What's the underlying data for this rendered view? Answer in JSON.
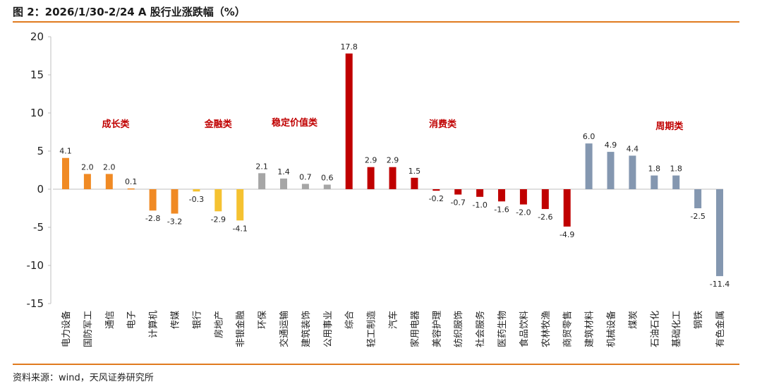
{
  "title": "图 2：2026/1/30-2/24 A 股行业涨跌幅（%）",
  "source": "资料来源：wind，天风证券研究所",
  "colors": {
    "growth": "#f08a24",
    "finance": "#f5c231",
    "stable": "#a6a6a6",
    "consumer": "#c00000",
    "cyclical": "#8497b0",
    "rule": "#e07b1f",
    "group_label": "#c00000"
  },
  "chart_data": {
    "type": "bar",
    "title": "2026/1/30-2/24 A 股行业涨跌幅（%）",
    "xlabel": "",
    "ylabel": "",
    "ylim": [
      -15,
      20
    ],
    "yticks": [
      20,
      15,
      10,
      5,
      0,
      -5,
      -10,
      -15
    ],
    "grid": false,
    "categories": [
      "电力设备",
      "国防军工",
      "通信",
      "电子",
      "计算机",
      "传媒",
      "银行",
      "房地产",
      "非银金融",
      "环保",
      "交通运输",
      "建筑装饰",
      "公用事业",
      "综合",
      "轻工制造",
      "汽车",
      "家用电器",
      "美容护理",
      "纺织服饰",
      "社会服务",
      "医药生物",
      "食品饮料",
      "农林牧渔",
      "商贸零售",
      "建筑材料",
      "机械设备",
      "煤炭",
      "石油石化",
      "基础化工",
      "钢铁",
      "有色金属"
    ],
    "values": [
      4.1,
      2.0,
      2.0,
      0.1,
      -2.8,
      -3.2,
      -0.3,
      -2.9,
      -4.1,
      2.1,
      1.4,
      0.7,
      0.6,
      17.8,
      2.9,
      2.9,
      1.5,
      -0.2,
      -0.7,
      -1.0,
      -1.6,
      -2.0,
      -2.6,
      -4.9,
      6.0,
      4.9,
      4.4,
      1.8,
      1.8,
      -2.5,
      -11.4
    ],
    "value_labels": [
      "4.1",
      "2.0",
      "2.0",
      "0.1",
      "-2.8",
      "-3.2",
      "-0.3",
      "-2.9",
      "-4.1",
      "2.1",
      "1.4",
      "0.7",
      "0.6",
      "17.8",
      "2.9",
      "2.9",
      "1.5",
      "-0.2",
      "-0.7",
      "-1.0",
      "-1.6",
      "-2.0",
      "-2.6",
      "-4.9",
      "6.0",
      "4.9",
      "4.4",
      "1.8",
      "1.8",
      "-2.5",
      "-11.4"
    ],
    "groups": [
      {
        "name": "成长类",
        "start": 0,
        "end": 5,
        "color_key": "growth"
      },
      {
        "name": "金融类",
        "start": 6,
        "end": 8,
        "color_key": "finance"
      },
      {
        "name": "稳定价值类",
        "start": 9,
        "end": 12,
        "color_key": "stable"
      },
      {
        "name": "消费类",
        "start": 13,
        "end": 23,
        "color_key": "consumer"
      },
      {
        "name": "周期类",
        "start": 24,
        "end": 30,
        "color_key": "cyclical"
      }
    ]
  }
}
